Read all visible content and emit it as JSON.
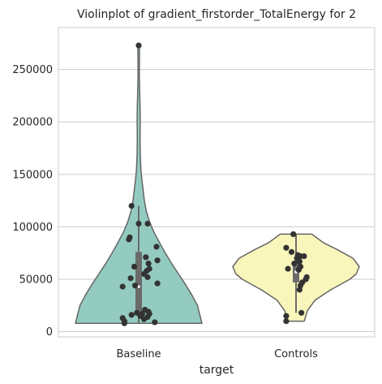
{
  "chart_data": {
    "type": "violin",
    "title": "Violinplot of gradient_firstorder_TotalEnergy for 2",
    "xlabel": "target",
    "ylabel": "",
    "categories": [
      "Baseline",
      "Controls"
    ],
    "ylim": [
      -5000,
      290000
    ],
    "yticks": [
      0,
      50000,
      100000,
      150000,
      200000,
      250000
    ],
    "ytick_labels": [
      "0",
      "50000",
      "100000",
      "150000",
      "200000",
      "250000"
    ],
    "grid": "horizontal",
    "colors": {
      "Baseline": "#94cbc0",
      "Controls": "#f8f6bb",
      "outline": "#656565",
      "box": "#6a6a6a",
      "points": "#333333"
    },
    "series": [
      {
        "category": "Baseline",
        "min": 8000,
        "max": 273000,
        "q1": 17000,
        "median": 43000,
        "q3": 76000,
        "whisker_low": 8000,
        "whisker_high": 120000,
        "density": [
          [
            8000,
            1.0
          ],
          [
            15000,
            0.97
          ],
          [
            25000,
            0.93
          ],
          [
            35000,
            0.84
          ],
          [
            45000,
            0.74
          ],
          [
            55000,
            0.63
          ],
          [
            65000,
            0.52
          ],
          [
            75000,
            0.42
          ],
          [
            85000,
            0.33
          ],
          [
            95000,
            0.24
          ],
          [
            105000,
            0.17
          ],
          [
            115000,
            0.12
          ],
          [
            125000,
            0.09
          ],
          [
            135000,
            0.07
          ],
          [
            145000,
            0.05
          ],
          [
            155000,
            0.035
          ],
          [
            170000,
            0.025
          ],
          [
            185000,
            0.022
          ],
          [
            200000,
            0.025
          ],
          [
            215000,
            0.022
          ],
          [
            230000,
            0.015
          ],
          [
            245000,
            0.01
          ],
          [
            260000,
            0.012
          ],
          [
            273000,
            0.014
          ]
        ],
        "points": [
          [
            273000,
            0.0
          ],
          [
            120000,
            -0.4
          ],
          [
            103000,
            0.0
          ],
          [
            103000,
            0.5
          ],
          [
            90000,
            -0.5
          ],
          [
            88000,
            -0.55
          ],
          [
            81000,
            1.0
          ],
          [
            71000,
            0.4
          ],
          [
            68000,
            1.05
          ],
          [
            65000,
            0.55
          ],
          [
            62000,
            -0.25
          ],
          [
            60000,
            0.6
          ],
          [
            58000,
            0.45
          ],
          [
            55000,
            0.3
          ],
          [
            52000,
            0.5
          ],
          [
            51000,
            -0.45
          ],
          [
            46000,
            1.05
          ],
          [
            44000,
            -0.2
          ],
          [
            43000,
            -0.9
          ],
          [
            21000,
            0.35
          ],
          [
            19000,
            0.55
          ],
          [
            18000,
            -0.1
          ],
          [
            17000,
            0.2
          ],
          [
            17000,
            0.6
          ],
          [
            16000,
            -0.4
          ],
          [
            15000,
            0.1
          ],
          [
            14000,
            0.5
          ],
          [
            13000,
            -0.9
          ],
          [
            12000,
            0.3
          ],
          [
            10000,
            -0.8
          ],
          [
            9000,
            0.9
          ],
          [
            8000,
            -0.8
          ]
        ]
      },
      {
        "category": "Controls",
        "min": 10000,
        "max": 93000,
        "q1": 47000,
        "median": 57000,
        "q3": 67000,
        "whisker_low": 18000,
        "whisker_high": 93000,
        "density": [
          [
            10000,
            0.13
          ],
          [
            20000,
            0.18
          ],
          [
            30000,
            0.3
          ],
          [
            40000,
            0.55
          ],
          [
            50000,
            0.85
          ],
          [
            55000,
            0.95
          ],
          [
            62000,
            1.0
          ],
          [
            70000,
            0.9
          ],
          [
            78000,
            0.66
          ],
          [
            85000,
            0.43
          ],
          [
            93000,
            0.25
          ]
        ],
        "points": [
          [
            93000,
            -0.15
          ],
          [
            80000,
            -0.55
          ],
          [
            76000,
            -0.25
          ],
          [
            73000,
            0.1
          ],
          [
            72000,
            0.25
          ],
          [
            72000,
            0.45
          ],
          [
            70000,
            0.05
          ],
          [
            67000,
            0.2
          ],
          [
            65000,
            -0.1
          ],
          [
            62000,
            0.25
          ],
          [
            60000,
            -0.45
          ],
          [
            59000,
            0.15
          ],
          [
            52000,
            0.6
          ],
          [
            50000,
            0.55
          ],
          [
            47000,
            0.35
          ],
          [
            44000,
            0.25
          ],
          [
            40000,
            0.2
          ],
          [
            18000,
            0.3
          ],
          [
            15000,
            -0.55
          ],
          [
            10000,
            -0.55
          ]
        ]
      }
    ]
  }
}
